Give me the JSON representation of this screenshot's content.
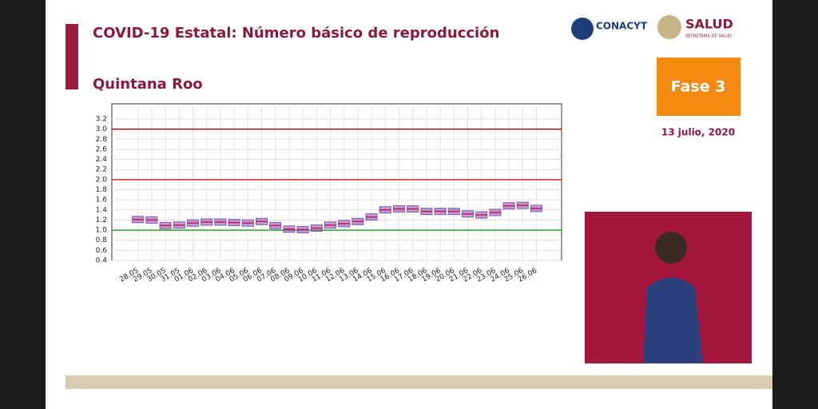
{
  "header": {
    "title": "COVID-19 Estatal: Número básico de reproducción",
    "state": "Quintana Roo",
    "logo_left": "CONACYT",
    "logo_right": "SALUD",
    "logo_right_sub": "SECRETARÍA DE SALUD",
    "phase": "Fase 3",
    "date": "13 julio, 2020"
  },
  "chart_data": {
    "type": "box",
    "color": "#9b59b6",
    "categories": [
      "28.05",
      "29.05",
      "30.05",
      "31.05",
      "01.06",
      "02.06",
      "03.06",
      "04.06",
      "05.06",
      "06.06",
      "07.06",
      "08.06",
      "09.06",
      "10.06",
      "11.06",
      "12.06",
      "13.06",
      "14.06",
      "15.06",
      "16.06",
      "17.06",
      "18.06",
      "19.06",
      "20.06",
      "21.06",
      "22.06",
      "23.06",
      "24.06",
      "25.06",
      "26.06"
    ],
    "values": [
      1.21,
      1.2,
      1.09,
      1.1,
      1.14,
      1.16,
      1.16,
      1.15,
      1.14,
      1.17,
      1.09,
      1.02,
      1.01,
      1.04,
      1.1,
      1.13,
      1.17,
      1.26,
      1.4,
      1.42,
      1.42,
      1.37,
      1.37,
      1.37,
      1.32,
      1.3,
      1.35,
      1.48,
      1.49,
      1.43
    ],
    "ylim": [
      0.4,
      3.5
    ],
    "yticks": [
      0.4,
      0.6,
      0.8,
      {
        "value": 1,
        "label": "1.0"
      },
      1.2,
      1.4,
      1.6,
      1.8,
      {
        "value": 2,
        "label": "2.0"
      },
      2.2,
      2.4,
      2.6,
      2.8,
      {
        "value": 3,
        "label": "3.0"
      },
      3.2
    ],
    "reference_lines": [
      {
        "value": 3,
        "color": "#8b1a1a"
      },
      {
        "value": 2,
        "color": "#d62728"
      },
      {
        "value": 1,
        "color": "#2ca02c"
      }
    ],
    "grid": true
  }
}
